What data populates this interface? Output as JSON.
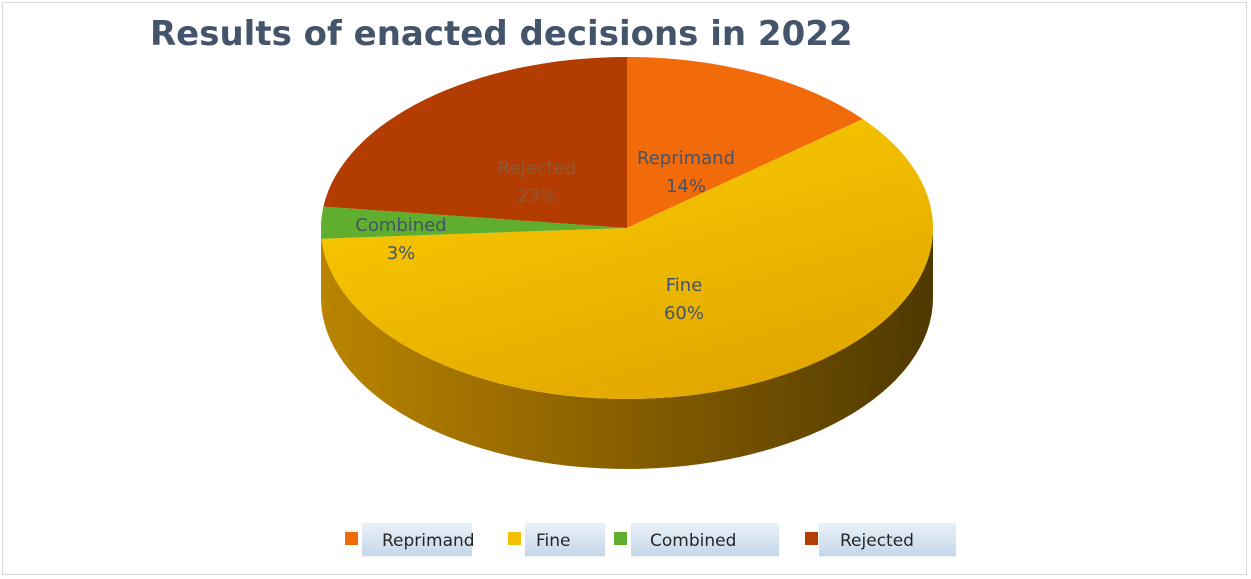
{
  "chart_data": {
    "type": "pie",
    "title": "Results of enacted decisions in 2022",
    "categories": [
      "Reprimand",
      "Fine",
      "Combined",
      "Rejected"
    ],
    "values": [
      14,
      60,
      3,
      23
    ],
    "labels": [
      "14%",
      "60%",
      "3%",
      "23%"
    ],
    "colors": [
      "#f26b0a",
      "#f5c000",
      "#5fae2e",
      "#b33c00"
    ],
    "label_colors": [
      "#44546a",
      "#44546a",
      "#44546a",
      "#8a5a3a"
    ],
    "legend": {
      "placement": "bottom",
      "entries": [
        "Reprimand",
        "Fine",
        "Combined",
        "Rejected"
      ]
    },
    "style": "3d-exploded-perspective"
  }
}
